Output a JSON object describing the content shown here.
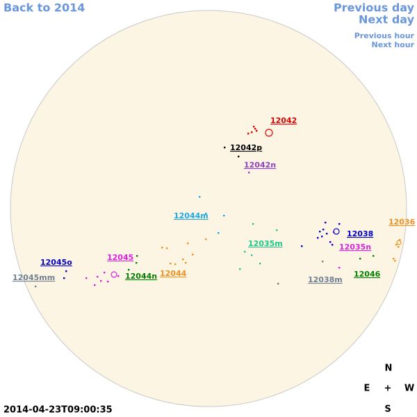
{
  "navigation": {
    "back": "Back to 2014",
    "previous_day": "Previous day",
    "next_day": "Next day",
    "previous_hour": "Previous hour",
    "next_hour": "Next hour"
  },
  "regions": [
    {
      "label": "12042",
      "color": "#e00000"
    },
    {
      "label": "12042p",
      "color": "#000000"
    },
    {
      "label": "12042n",
      "color": "#9040c0"
    },
    {
      "label": "12044m",
      "color": "#20a8e0"
    },
    {
      "label": "12036",
      "color": "#f0901e"
    },
    {
      "label": "12038",
      "color": "#0000c8"
    },
    {
      "label": "12035m",
      "color": "#20c88a"
    },
    {
      "label": "12035n",
      "color": "#e020e0"
    },
    {
      "label": "12045o",
      "color": "#0000c8"
    },
    {
      "label": "12045",
      "color": "#e020e0"
    },
    {
      "label": "12044n",
      "color": "#008000"
    },
    {
      "label": "12044",
      "color": "#f0901e"
    },
    {
      "label": "12046",
      "color": "#008000"
    },
    {
      "label": "12045mm",
      "color": "#708090"
    },
    {
      "label": "12038m",
      "color": "#708090"
    }
  ],
  "compass": {
    "north": "N",
    "east": "E",
    "center": "+",
    "west": "W",
    "south": "S"
  },
  "timestamp": "2014-04-23T09:00:35"
}
